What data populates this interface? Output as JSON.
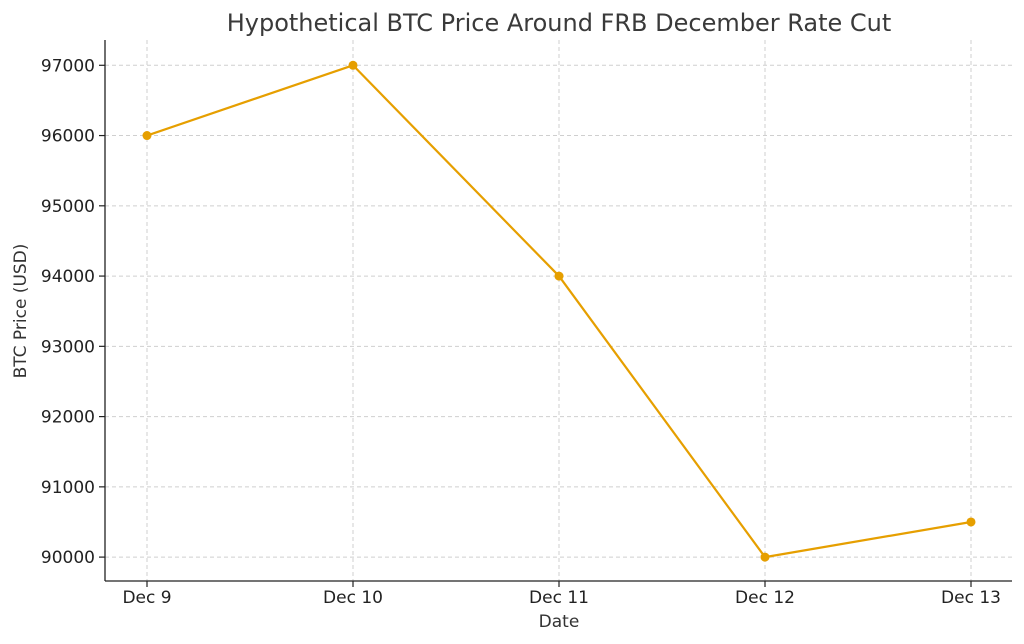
{
  "chart_data": {
    "type": "line",
    "title": "Hypothetical BTC Price Around FRB December Rate Cut",
    "xlabel": "Date",
    "ylabel": "BTC Price (USD)",
    "categories": [
      "Dec 9",
      "Dec 10",
      "Dec 11",
      "Dec 12",
      "Dec 13"
    ],
    "series": [
      {
        "values": [
          96000,
          97000,
          94000,
          90000,
          90500
        ]
      }
    ],
    "yticks": [
      90000,
      91000,
      92000,
      93000,
      94000,
      95000,
      96000,
      97000
    ],
    "ylim": [
      89660,
      97360
    ],
    "grid": true,
    "colors": {
      "line": "#E69F00",
      "marker": "#E69F00"
    }
  }
}
